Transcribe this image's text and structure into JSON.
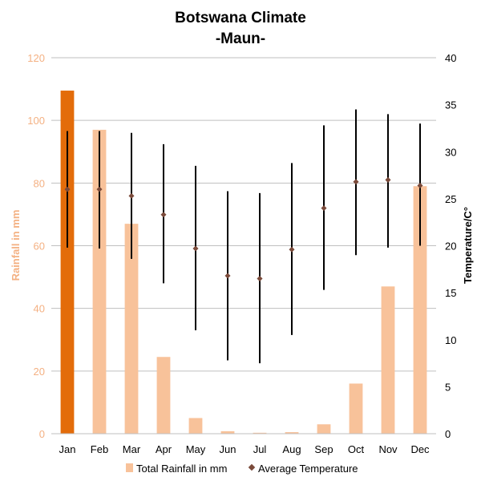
{
  "chart_data": {
    "type": "bar",
    "title": "Botswana Climate",
    "subtitle": "-Maun-",
    "categories": [
      "Jan",
      "Feb",
      "Mar",
      "Apr",
      "May",
      "Jun",
      "Jul",
      "Aug",
      "Sep",
      "Oct",
      "Nov",
      "Dec"
    ],
    "series": [
      {
        "name": "Total Rainfall in mm",
        "type": "bar",
        "axis": "left",
        "values": [
          109.5,
          97,
          67,
          24.5,
          5,
          0.8,
          0.3,
          0.5,
          3,
          16,
          47,
          79
        ],
        "color": "#f8c29a",
        "highlight_color": "#e36c0a",
        "highlight_index": 0
      },
      {
        "name": "Average Temperature",
        "type": "scatter",
        "axis": "right",
        "values": [
          26,
          26,
          25.3,
          23.3,
          19.7,
          16.8,
          16.5,
          19.6,
          24,
          26.8,
          27,
          26.4
        ],
        "range_high": [
          32.2,
          32.2,
          32,
          30.8,
          28.5,
          25.8,
          25.6,
          28.8,
          32.8,
          34.5,
          34,
          33
        ],
        "range_low": [
          19.8,
          19.7,
          18.6,
          16,
          11,
          7.8,
          7.5,
          10.5,
          15.3,
          19,
          19.8,
          20
        ],
        "color": "#7a4a3a"
      }
    ],
    "ylabel_left": "Rainfall in mm",
    "ylabel_right": "Temperature/C°",
    "ylim_left": [
      0,
      120
    ],
    "ylim_right": [
      0,
      40
    ],
    "yticks_left": [
      0,
      20,
      40,
      60,
      80,
      100,
      120
    ],
    "yticks_right": [
      0,
      5,
      10,
      15,
      20,
      25,
      30,
      35,
      40
    ],
    "grid": true,
    "legend_position": "bottom",
    "colors": {
      "grid": "#bfbfbf",
      "left_axis_text": "#f4b183",
      "range_line": "#000000"
    }
  }
}
